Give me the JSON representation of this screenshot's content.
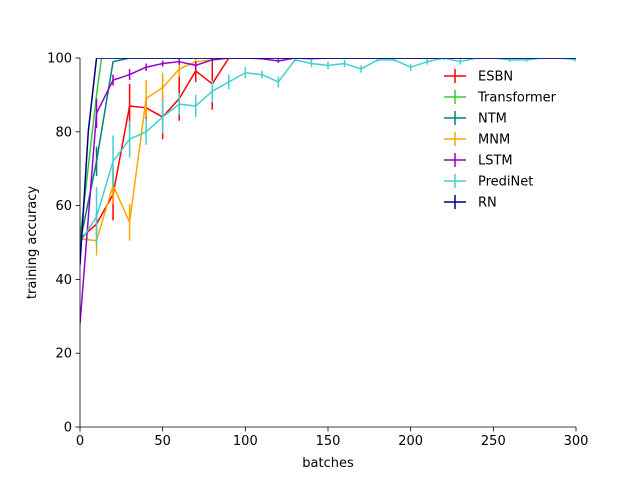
{
  "chart_data": {
    "type": "line",
    "title": "",
    "xlabel": "batches",
    "ylabel": "training accuracy",
    "xlim": [
      0,
      300
    ],
    "ylim": [
      0,
      100
    ],
    "xticks": [
      0,
      50,
      100,
      150,
      200,
      250,
      300
    ],
    "yticks": [
      0,
      20,
      40,
      60,
      80,
      100
    ],
    "grid": false,
    "legend_position": "upper-right",
    "series": [
      {
        "name": "ESBN",
        "color": "#ff0000",
        "points": [
          [
            0,
            51
          ],
          [
            10,
            55
          ],
          [
            20,
            63
          ],
          [
            30,
            87
          ],
          [
            40,
            86.5
          ],
          [
            50,
            84
          ],
          [
            60,
            89
          ],
          [
            70,
            96.5
          ],
          [
            80,
            93
          ],
          [
            90,
            100
          ],
          [
            100,
            100
          ],
          [
            120,
            100
          ],
          [
            150,
            100
          ],
          [
            200,
            100
          ],
          [
            250,
            100
          ],
          [
            300,
            100
          ]
        ],
        "errors": [
          [
            0,
            0
          ],
          [
            10,
            3
          ],
          [
            20,
            7
          ],
          [
            30,
            6
          ],
          [
            40,
            3
          ],
          [
            50,
            6
          ],
          [
            60,
            6
          ],
          [
            70,
            3
          ],
          [
            80,
            7
          ],
          [
            90,
            0
          ],
          [
            100,
            0
          ],
          [
            120,
            0
          ],
          [
            150,
            0
          ],
          [
            200,
            0
          ],
          [
            250,
            0
          ],
          [
            300,
            0
          ]
        ]
      },
      {
        "name": "Transformer",
        "color": "#33cc33",
        "points": [
          [
            0,
            51
          ],
          [
            10,
            90
          ],
          [
            13,
            100
          ],
          [
            20,
            100
          ],
          [
            50,
            100
          ],
          [
            100,
            100
          ],
          [
            150,
            100
          ],
          [
            200,
            100
          ],
          [
            250,
            100
          ],
          [
            300,
            100
          ]
        ],
        "errors": [
          [
            0,
            0
          ],
          [
            10,
            0
          ],
          [
            13,
            0
          ],
          [
            20,
            0
          ],
          [
            50,
            0
          ],
          [
            100,
            0
          ],
          [
            150,
            0
          ],
          [
            200,
            0
          ],
          [
            250,
            0
          ],
          [
            300,
            0
          ]
        ]
      },
      {
        "name": "NTM",
        "color": "#008080",
        "points": [
          [
            0,
            50
          ],
          [
            10,
            72
          ],
          [
            20,
            99
          ],
          [
            30,
            100
          ],
          [
            50,
            100
          ],
          [
            100,
            100
          ],
          [
            150,
            100
          ],
          [
            200,
            100
          ],
          [
            250,
            100
          ],
          [
            300,
            100
          ]
        ],
        "errors": [
          [
            0,
            0
          ],
          [
            10,
            4
          ],
          [
            20,
            0
          ],
          [
            30,
            0
          ],
          [
            50,
            0
          ],
          [
            100,
            0
          ],
          [
            150,
            0
          ],
          [
            200,
            0
          ],
          [
            250,
            0
          ],
          [
            300,
            0
          ]
        ]
      },
      {
        "name": "MNM",
        "color": "#ffa500",
        "points": [
          [
            0,
            51
          ],
          [
            10,
            50.5
          ],
          [
            20,
            65.5
          ],
          [
            30,
            55.5
          ],
          [
            40,
            89
          ],
          [
            50,
            92
          ],
          [
            60,
            97
          ],
          [
            70,
            99
          ],
          [
            80,
            99.5
          ],
          [
            90,
            100
          ],
          [
            100,
            100
          ],
          [
            150,
            100
          ],
          [
            200,
            100
          ],
          [
            250,
            100
          ],
          [
            300,
            100
          ]
        ],
        "errors": [
          [
            0,
            0
          ],
          [
            10,
            4
          ],
          [
            20,
            5
          ],
          [
            30,
            5
          ],
          [
            40,
            5
          ],
          [
            50,
            4
          ],
          [
            60,
            2
          ],
          [
            70,
            1
          ],
          [
            80,
            0
          ],
          [
            90,
            0
          ],
          [
            100,
            0
          ],
          [
            150,
            0
          ],
          [
            200,
            0
          ],
          [
            250,
            0
          ],
          [
            300,
            0
          ]
        ]
      },
      {
        "name": "LSTM",
        "color": "#9900cc",
        "points": [
          [
            0,
            28
          ],
          [
            10,
            85
          ],
          [
            20,
            94
          ],
          [
            30,
            95.5
          ],
          [
            40,
            97.5
          ],
          [
            50,
            98.5
          ],
          [
            60,
            99
          ],
          [
            70,
            98
          ],
          [
            80,
            99.5
          ],
          [
            90,
            100
          ],
          [
            100,
            100
          ],
          [
            110,
            99.8
          ],
          [
            120,
            99.2
          ],
          [
            130,
            100
          ],
          [
            140,
            99.8
          ],
          [
            150,
            100
          ],
          [
            200,
            100
          ],
          [
            250,
            100
          ],
          [
            300,
            100
          ]
        ],
        "errors": [
          [
            0,
            0
          ],
          [
            10,
            4
          ],
          [
            20,
            1.5
          ],
          [
            30,
            1.5
          ],
          [
            40,
            1
          ],
          [
            50,
            0.8
          ],
          [
            60,
            0.8
          ],
          [
            70,
            1
          ],
          [
            80,
            0.5
          ],
          [
            90,
            0
          ],
          [
            100,
            0
          ],
          [
            110,
            0.2
          ],
          [
            120,
            0.5
          ],
          [
            130,
            0
          ],
          [
            140,
            0.2
          ],
          [
            150,
            0
          ],
          [
            200,
            0
          ],
          [
            250,
            0
          ],
          [
            300,
            0
          ]
        ]
      },
      {
        "name": "PrediNet",
        "color": "#40d0d0",
        "points": [
          [
            0,
            50
          ],
          [
            10,
            57
          ],
          [
            20,
            72
          ],
          [
            30,
            78
          ],
          [
            40,
            80
          ],
          [
            50,
            84
          ],
          [
            60,
            87.5
          ],
          [
            70,
            87
          ],
          [
            80,
            91
          ],
          [
            90,
            93.5
          ],
          [
            100,
            96
          ],
          [
            110,
            95.5
          ],
          [
            120,
            93.5
          ],
          [
            130,
            99.5
          ],
          [
            140,
            98.5
          ],
          [
            150,
            98
          ],
          [
            160,
            98.5
          ],
          [
            170,
            97
          ],
          [
            180,
            99.5
          ],
          [
            190,
            99.5
          ],
          [
            200,
            97.5
          ],
          [
            210,
            99
          ],
          [
            220,
            100
          ],
          [
            230,
            99
          ],
          [
            240,
            100
          ],
          [
            250,
            100
          ],
          [
            260,
            99.5
          ],
          [
            270,
            99.5
          ],
          [
            280,
            100
          ],
          [
            290,
            100
          ],
          [
            300,
            99.5
          ]
        ],
        "errors": [
          [
            0,
            0
          ],
          [
            10,
            8
          ],
          [
            20,
            7
          ],
          [
            30,
            5
          ],
          [
            40,
            3.5
          ],
          [
            50,
            4.5
          ],
          [
            60,
            3
          ],
          [
            70,
            3
          ],
          [
            80,
            3
          ],
          [
            90,
            2
          ],
          [
            100,
            1.5
          ],
          [
            110,
            1
          ],
          [
            120,
            1.5
          ],
          [
            130,
            0.5
          ],
          [
            140,
            1
          ],
          [
            150,
            1
          ],
          [
            160,
            1
          ],
          [
            170,
            1
          ],
          [
            180,
            0.5
          ],
          [
            190,
            0.5
          ],
          [
            200,
            1
          ],
          [
            210,
            0.8
          ],
          [
            220,
            0.5
          ],
          [
            230,
            0.8
          ],
          [
            240,
            0.3
          ],
          [
            250,
            0.3
          ],
          [
            260,
            0.5
          ],
          [
            270,
            0.5
          ],
          [
            280,
            0.2
          ],
          [
            290,
            0.2
          ],
          [
            300,
            0.5
          ]
        ]
      },
      {
        "name": "RN",
        "color": "#000080",
        "points": [
          [
            0,
            44
          ],
          [
            5,
            80
          ],
          [
            10,
            100
          ],
          [
            20,
            100
          ],
          [
            50,
            100
          ],
          [
            100,
            100
          ],
          [
            150,
            100
          ],
          [
            200,
            100
          ],
          [
            250,
            100
          ],
          [
            300,
            100
          ]
        ],
        "errors": [
          [
            0,
            0
          ],
          [
            5,
            0
          ],
          [
            10,
            0
          ],
          [
            20,
            0
          ],
          [
            50,
            0
          ],
          [
            100,
            0
          ],
          [
            150,
            0
          ],
          [
            200,
            0
          ],
          [
            250,
            0
          ],
          [
            300,
            0
          ]
        ]
      }
    ]
  }
}
